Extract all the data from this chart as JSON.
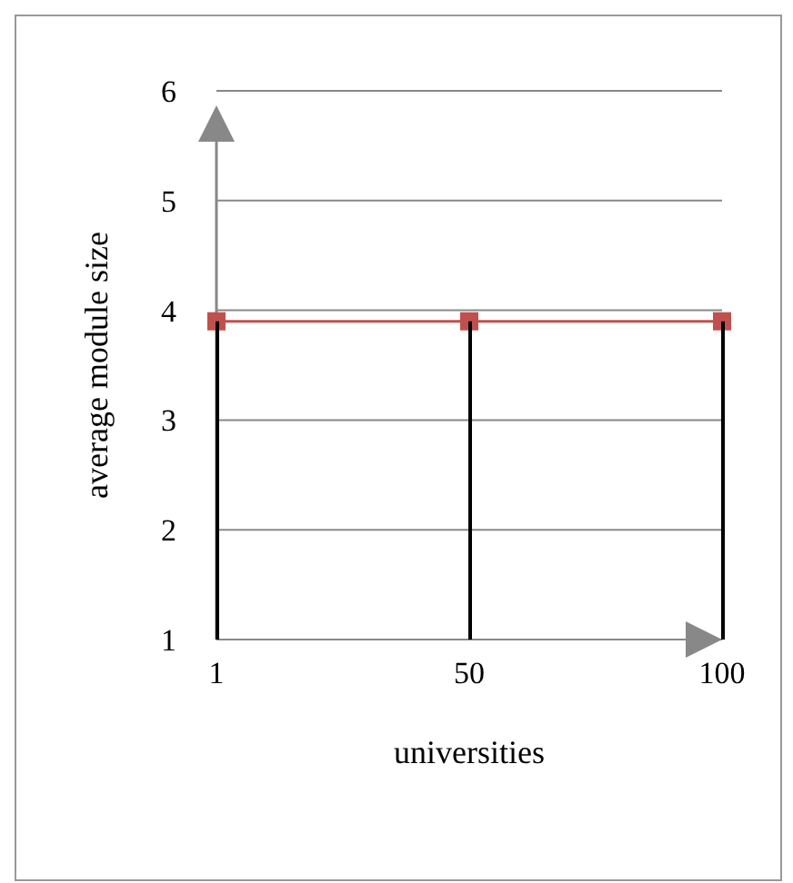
{
  "chart_data": {
    "type": "line",
    "xlabel": "universities",
    "ylabel": "average module size",
    "categories": [
      "1",
      "50",
      "100"
    ],
    "series": [
      {
        "color": "#c0504d",
        "values": [
          3.9,
          3.9,
          3.9
        ],
        "marker": "square"
      },
      {
        "type": "bar",
        "color": "#000000",
        "values": [
          3.9,
          3.9,
          3.9
        ]
      }
    ],
    "ylim": [
      1,
      6
    ],
    "yticks": [
      1,
      2,
      3,
      4,
      5,
      6
    ],
    "grid": "y",
    "legend": false
  }
}
